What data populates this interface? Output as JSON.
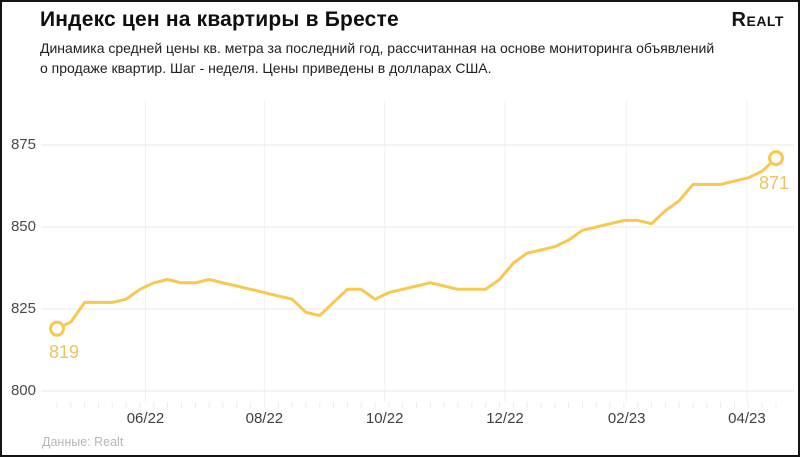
{
  "header": {
    "title": "Индекс цен на квартиры в Бресте",
    "subtitle": "Динамика средней цены кв. метра за последний год, рассчитанная на основе мониторинга объявлений о продаже квартир. Шаг - неделя. Цены приведены в долларах США.",
    "logo": "Realt"
  },
  "footer": {
    "source": "Данные: Realt"
  },
  "chart_data": {
    "type": "line",
    "title": "Индекс цен на квартиры в Бресте",
    "x_unit": "неделя",
    "currency": "USD",
    "grid": true,
    "legend": false,
    "line_color": "#f8c84f",
    "marker_color": "#f8c84f",
    "value_label_color": "#edc35e",
    "start_label": "819",
    "end_label": "871",
    "y_ticks": [
      800,
      825,
      850,
      875
    ],
    "ylim": [
      797,
      889
    ],
    "x_ticks": [
      {
        "label": "06/22",
        "week": 6.4
      },
      {
        "label": "08/22",
        "week": 15.0
      },
      {
        "label": "10/22",
        "week": 23.7
      },
      {
        "label": "12/22",
        "week": 32.4
      },
      {
        "label": "02/23",
        "week": 41.2
      },
      {
        "label": "04/23",
        "week": 49.9
      }
    ],
    "series": [
      {
        "name": "Средняя цена кв. метра, USD",
        "values": [
          819,
          821,
          827,
          827,
          827,
          828,
          831,
          833,
          834,
          833,
          833,
          834,
          833,
          832,
          831,
          830,
          829,
          828,
          824,
          823,
          827,
          831,
          831,
          828,
          830,
          831,
          832,
          833,
          832,
          831,
          831,
          831,
          834,
          839,
          842,
          843,
          844,
          846,
          849,
          850,
          851,
          852,
          852,
          851,
          855,
          858,
          863,
          863,
          863,
          864,
          865,
          867,
          871
        ]
      }
    ]
  }
}
